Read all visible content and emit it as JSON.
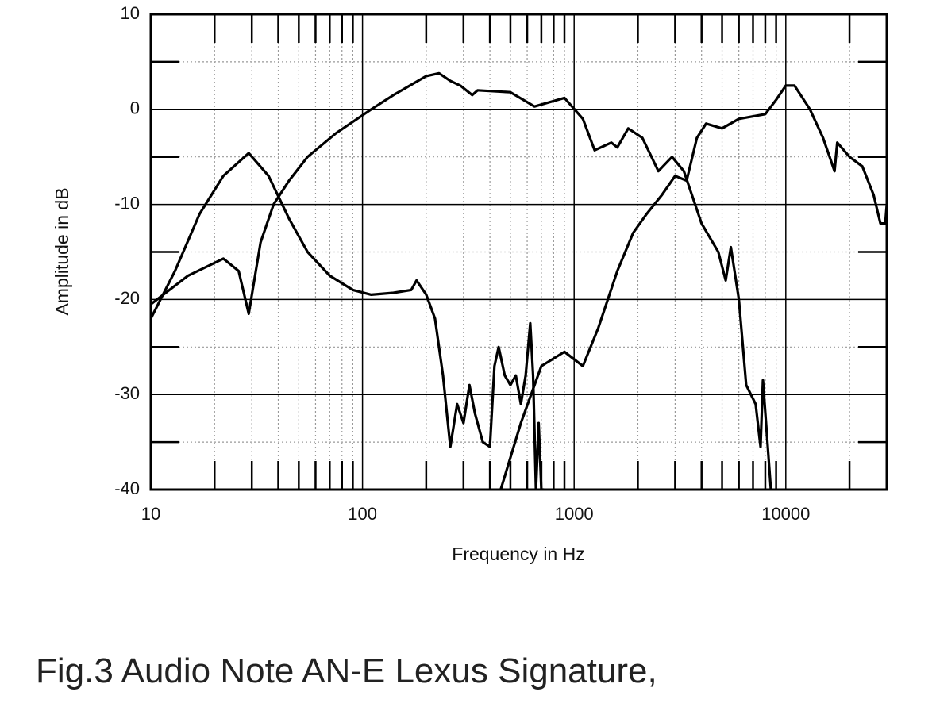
{
  "chart_data": {
    "type": "line",
    "x_label": "Frequency in Hz",
    "y_label": "Amplitude in dB",
    "caption": "Fig.3 Audio Note AN-E Lexus Signature,",
    "xscale": "log",
    "grid": true,
    "xlim": [
      10,
      30000
    ],
    "ylim": [
      -40,
      10
    ],
    "xticks": [
      10,
      100,
      1000,
      10000
    ],
    "yticks": [
      10,
      0,
      -10,
      -20,
      -30,
      -40
    ],
    "series": [
      {
        "color": "#000000",
        "x": [
          10,
          13,
          17,
          22,
          29,
          36,
          45,
          55,
          70,
          90,
          110,
          140,
          170,
          180,
          200,
          220,
          240,
          260,
          280,
          300,
          320,
          340,
          370,
          400,
          420,
          440,
          470,
          500,
          530,
          560,
          590,
          620,
          640,
          660,
          680,
          700,
          720
        ],
        "values": [
          -22,
          -17,
          -11,
          -7,
          -4.6,
          -7,
          -11.5,
          -15,
          -17.5,
          -19,
          -19.5,
          -19.3,
          -19,
          -18,
          -19.5,
          -22,
          -28,
          -35.5,
          -31,
          -33,
          -29,
          -32,
          -35,
          -35.5,
          -27,
          -25,
          -28,
          -29,
          -28,
          -31,
          -28,
          -22.5,
          -28,
          -40,
          -33,
          -40,
          -40
        ]
      },
      {
        "color": "#000000",
        "x": [
          10,
          15,
          22,
          26,
          29,
          33,
          38,
          45,
          55,
          75,
          110,
          140,
          200,
          230,
          260,
          290,
          330,
          350,
          500,
          650,
          900,
          1100,
          1250,
          1500,
          1600,
          1800,
          2100,
          2500,
          2900,
          3300,
          4000,
          4800,
          5200,
          5500,
          6000,
          6500,
          7200,
          7600,
          7800,
          8500
        ],
        "values": [
          -20.5,
          -17.5,
          -15.7,
          -17,
          -21.5,
          -14,
          -10,
          -7.5,
          -5,
          -2.5,
          0,
          1.5,
          3.5,
          3.8,
          3,
          2.5,
          1.5,
          2,
          1.8,
          0.3,
          1.2,
          -1,
          -4.3,
          -3.5,
          -4,
          -2,
          -3,
          -6.5,
          -5,
          -6.5,
          -12,
          -15,
          -18,
          -14.5,
          -20,
          -29,
          -31,
          -35.5,
          -28.5,
          -40
        ]
      },
      {
        "color": "#000000",
        "x": [
          450,
          560,
          700,
          900,
          1100,
          1300,
          1600,
          1900,
          2200,
          2600,
          3000,
          3400,
          3800,
          4200,
          5000,
          6000,
          8000,
          9000,
          10000,
          11000,
          13000,
          15000,
          17000,
          17500,
          20000,
          23000,
          26000,
          28000,
          29500,
          30000
        ],
        "values": [
          -40,
          -33,
          -27,
          -25.5,
          -27,
          -23,
          -17,
          -13,
          -11,
          -9,
          -7,
          -7.5,
          -3,
          -1.5,
          -2,
          -1,
          -0.5,
          1,
          2.5,
          2.5,
          0,
          -3,
          -6.5,
          -3.5,
          -5,
          -6,
          -9,
          -12,
          -12,
          -10
        ]
      }
    ]
  }
}
